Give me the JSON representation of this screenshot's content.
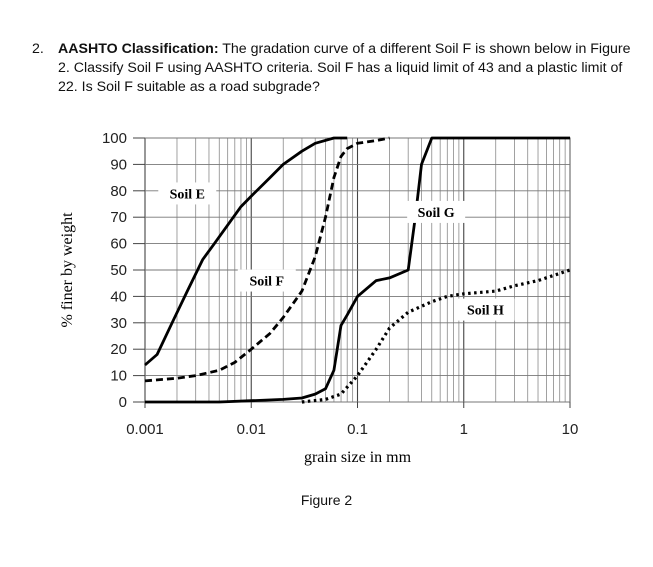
{
  "question": {
    "number": "2.",
    "lead": "AASHTO Classification:",
    "text": " The gradation curve of a different Soil F is shown below in Figure 2. Classify Soil F using AASHTO criteria. Soil F has a liquid limit of 43 and a plastic limit of 22. Is Soil F suitable as a road subgrade?"
  },
  "figure_caption": "Figure 2",
  "chart_data": {
    "type": "line",
    "x_scale": "log",
    "xlim": [
      0.001,
      10
    ],
    "ylim": [
      0,
      100
    ],
    "xlabel": "grain size in mm",
    "ylabel": "% finer by weight",
    "x_ticks": [
      {
        "value": 0.001,
        "label": "0.001"
      },
      {
        "value": 0.01,
        "label": "0.01"
      },
      {
        "value": 0.1,
        "label": "0.1"
      },
      {
        "value": 1,
        "label": "1"
      },
      {
        "value": 10,
        "label": "10"
      }
    ],
    "y_ticks": [
      0,
      10,
      20,
      30,
      40,
      50,
      60,
      70,
      80,
      90,
      100
    ],
    "grid": true,
    "series": [
      {
        "name": "Soil E",
        "style": "solid",
        "x": [
          0.001,
          0.0013,
          0.0018,
          0.0025,
          0.0035,
          0.0045,
          0.006,
          0.008,
          0.01,
          0.015,
          0.02,
          0.03,
          0.04,
          0.06,
          0.08
        ],
        "y": [
          14,
          18,
          30,
          42,
          54,
          60,
          67,
          74,
          78,
          85,
          90,
          95,
          98,
          100,
          100
        ]
      },
      {
        "name": "Soil F",
        "style": "dashed",
        "x": [
          0.001,
          0.002,
          0.003,
          0.005,
          0.007,
          0.01,
          0.015,
          0.02,
          0.03,
          0.04,
          0.05,
          0.06,
          0.07,
          0.08,
          0.1,
          0.15,
          0.2
        ],
        "y": [
          8,
          9,
          10,
          12,
          15,
          20,
          26,
          32,
          42,
          55,
          70,
          85,
          93,
          96,
          98,
          99,
          100
        ]
      },
      {
        "name": "Soil G",
        "style": "solid",
        "x": [
          0.001,
          0.005,
          0.01,
          0.02,
          0.03,
          0.04,
          0.05,
          0.06,
          0.07,
          0.08,
          0.1,
          0.15,
          0.2,
          0.3,
          0.35,
          0.4,
          0.5,
          0.7,
          1,
          10
        ],
        "y": [
          0,
          0,
          0.5,
          1,
          1.5,
          3,
          5,
          12,
          29,
          33,
          40,
          46,
          47,
          50,
          70,
          90,
          100,
          100,
          100,
          100
        ]
      },
      {
        "name": "Soil H",
        "style": "dotted",
        "x": [
          0.03,
          0.05,
          0.07,
          0.1,
          0.15,
          0.2,
          0.3,
          0.5,
          0.7,
          1,
          2,
          3,
          5,
          10
        ],
        "y": [
          0,
          1,
          3,
          10,
          20,
          28,
          34,
          38,
          40,
          41,
          42,
          44,
          46,
          50
        ]
      }
    ],
    "annotations": [
      {
        "text": "Soil E",
        "x": 0.0025,
        "y": 79
      },
      {
        "text": "Soil F",
        "x": 0.014,
        "y": 46
      },
      {
        "text": "Soil G",
        "x": 0.55,
        "y": 72
      },
      {
        "text": "Soil H",
        "x": 1.6,
        "y": 35
      }
    ]
  }
}
